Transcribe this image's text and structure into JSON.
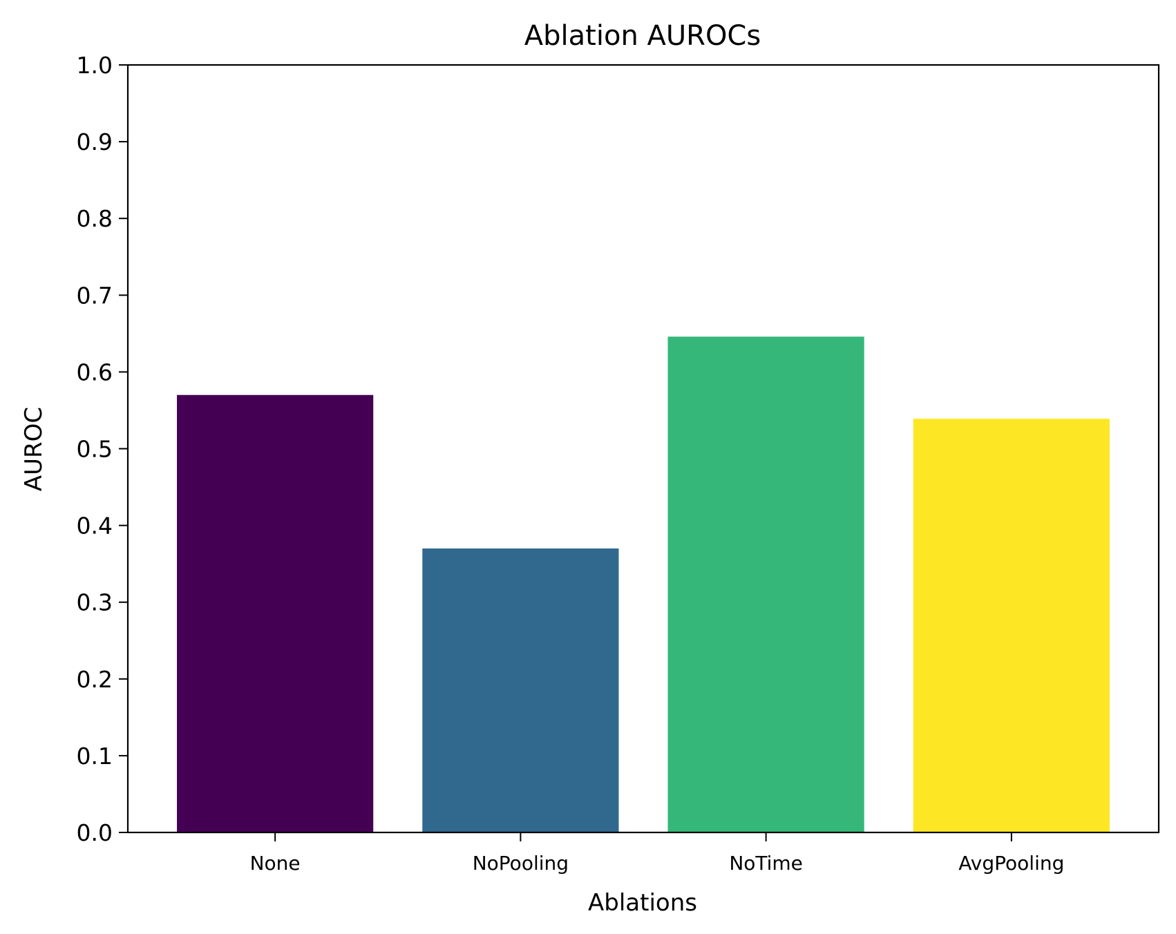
{
  "chart_data": {
    "type": "bar",
    "title": "Ablation AUROCs",
    "xlabel": "Ablations",
    "ylabel": "AUROC",
    "categories": [
      "None",
      "NoPooling",
      "NoTime",
      "AvgPooling"
    ],
    "values": [
      0.57,
      0.37,
      0.646,
      0.539
    ],
    "colors": [
      "#440154",
      "#31688e",
      "#35b779",
      "#fde725"
    ],
    "ylim": [
      0,
      1.0
    ],
    "yticks": [
      "0.0",
      "0.1",
      "0.2",
      "0.3",
      "0.4",
      "0.5",
      "0.6",
      "0.7",
      "0.8",
      "0.9",
      "1.0"
    ],
    "grid": false,
    "legend": "none"
  }
}
